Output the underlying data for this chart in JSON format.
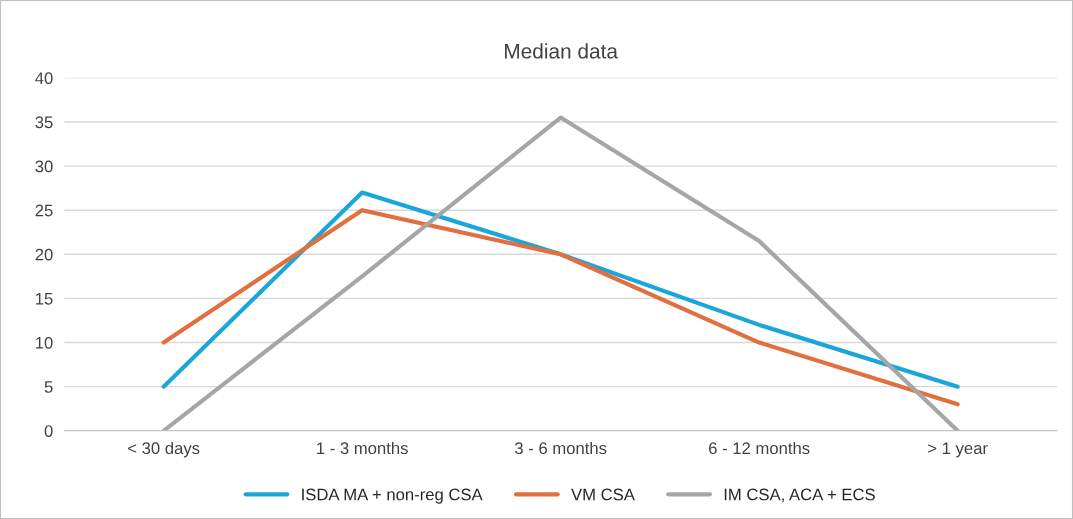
{
  "chart_data": {
    "type": "line",
    "title": "Median data",
    "categories": [
      "< 30 days",
      "1 - 3 months",
      "3 - 6 months",
      "6 - 12 months",
      "> 1 year"
    ],
    "series": [
      {
        "name": "ISDA MA + non-reg CSA",
        "color": "#1ba6d9",
        "values": [
          5,
          27,
          20,
          12,
          5
        ]
      },
      {
        "name": "VM CSA",
        "color": "#e0703f",
        "values": [
          10,
          25,
          20,
          10,
          3
        ]
      },
      {
        "name": "IM CSA, ACA + ECS",
        "color": "#a6a6a6",
        "values": [
          0,
          17.5,
          35.5,
          21.5,
          0
        ]
      }
    ],
    "ylim": [
      0,
      40
    ],
    "yticks": [
      0,
      5,
      10,
      15,
      20,
      25,
      30,
      35,
      40
    ],
    "grid": "y",
    "legend": "bottom",
    "marker": "none",
    "line_style": "solid"
  }
}
